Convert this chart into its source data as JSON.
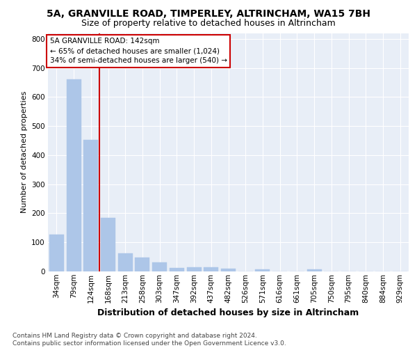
{
  "title1": "5A, GRANVILLE ROAD, TIMPERLEY, ALTRINCHAM, WA15 7BH",
  "title2": "Size of property relative to detached houses in Altrincham",
  "xlabel": "Distribution of detached houses by size in Altrincham",
  "ylabel": "Number of detached properties",
  "categories": [
    "34sqm",
    "79sqm",
    "124sqm",
    "168sqm",
    "213sqm",
    "258sqm",
    "303sqm",
    "347sqm",
    "392sqm",
    "437sqm",
    "482sqm",
    "526sqm",
    "571sqm",
    "616sqm",
    "661sqm",
    "705sqm",
    "750sqm",
    "795sqm",
    "840sqm",
    "884sqm",
    "929sqm"
  ],
  "values": [
    128,
    660,
    453,
    185,
    62,
    47,
    30,
    12,
    15,
    15,
    9,
    0,
    8,
    0,
    0,
    8,
    0,
    0,
    0,
    0,
    0
  ],
  "bar_color": "#adc6e8",
  "bar_edge_color": "#adc6e8",
  "vline_x": 2.5,
  "vline_color": "#cc0000",
  "annotation_text": "5A GRANVILLE ROAD: 142sqm\n← 65% of detached houses are smaller (1,024)\n34% of semi-detached houses are larger (540) →",
  "annotation_box_color": "white",
  "annotation_box_edge": "#cc0000",
  "ylim": [
    0,
    820
  ],
  "yticks": [
    0,
    100,
    200,
    300,
    400,
    500,
    600,
    700,
    800
  ],
  "footer": "Contains HM Land Registry data © Crown copyright and database right 2024.\nContains public sector information licensed under the Open Government Licence v3.0.",
  "plot_bg_color": "#e8eef7",
  "grid_color": "white",
  "title1_fontsize": 10,
  "title2_fontsize": 9,
  "xlabel_fontsize": 9,
  "ylabel_fontsize": 8,
  "annotation_fontsize": 7.5,
  "footer_fontsize": 6.5,
  "tick_fontsize": 7.5
}
